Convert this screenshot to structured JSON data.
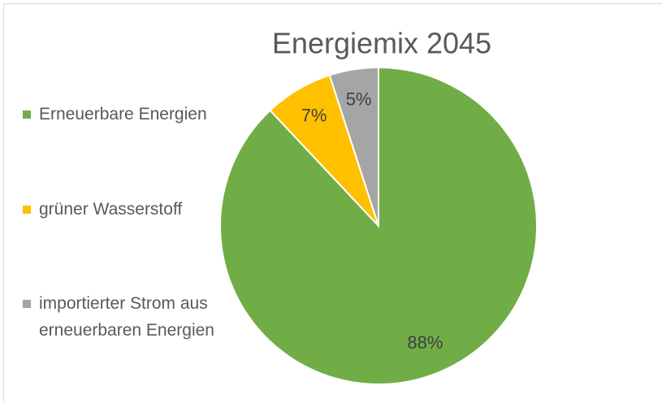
{
  "chart_data": {
    "type": "pie",
    "title": "Energiemix 2045",
    "categories": [
      "Erneuerbare Energien",
      "grüner Wasserstoff",
      "importierter Strom aus erneuerbaren Energien"
    ],
    "values": [
      88,
      7,
      5
    ],
    "value_labels": [
      "88%",
      "7%",
      "5%"
    ],
    "colors": [
      "#70ad47",
      "#ffc000",
      "#a5a5a5"
    ],
    "legend": "left"
  }
}
